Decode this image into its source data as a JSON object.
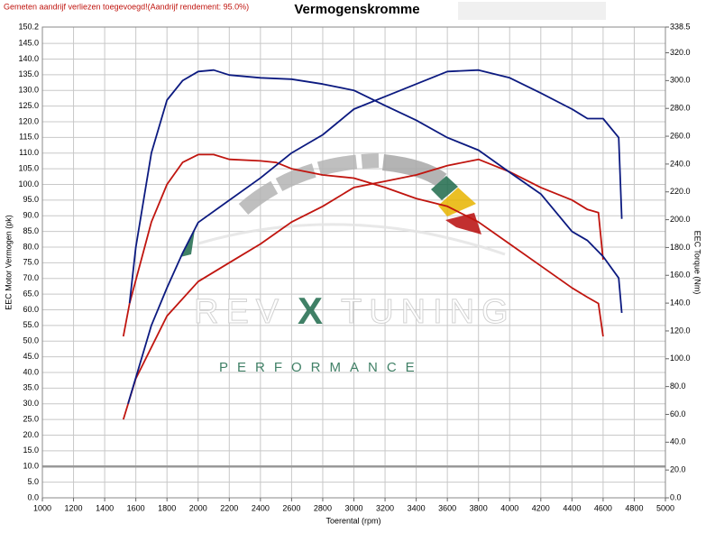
{
  "note": "Gemeten aandrijf verliezen toegevoegd!(Aandrijf rendement: 95.0%)",
  "watermark": {
    "brand_left": "REV",
    "brand_mid": "X",
    "brand_right": "TUNING",
    "tagline": "PERFORMANCE"
  },
  "chart_data": {
    "type": "line",
    "title": "Vermogenskromme",
    "x_label": "Toerental (rpm)",
    "y_label": "EEC Motor Vermogen (pk)",
    "y2_label": "EEC Torque (Nm)",
    "xlim": [
      1000,
      5000
    ],
    "xticks": [
      1000,
      1200,
      1400,
      1600,
      1800,
      2000,
      2200,
      2400,
      2600,
      2800,
      3000,
      3200,
      3400,
      3600,
      3800,
      4000,
      4200,
      4400,
      4600,
      4800,
      5000
    ],
    "ylim": [
      0,
      150.2
    ],
    "yticks": [
      {
        "value": 0,
        "label": "0.0"
      },
      {
        "value": 5,
        "label": "5.0"
      },
      {
        "value": 10,
        "label": "10.0"
      },
      {
        "value": 15,
        "label": "15.0"
      },
      {
        "value": 20,
        "label": "20.0"
      },
      {
        "value": 25,
        "label": "25.0"
      },
      {
        "value": 30,
        "label": "30.0"
      },
      {
        "value": 35,
        "label": "35.0"
      },
      {
        "value": 40,
        "label": "40.0"
      },
      {
        "value": 45,
        "label": "45.0"
      },
      {
        "value": 50,
        "label": "50.0"
      },
      {
        "value": 55,
        "label": "55.0"
      },
      {
        "value": 60,
        "label": "60.0"
      },
      {
        "value": 65,
        "label": "65.0"
      },
      {
        "value": 70,
        "label": "70.0"
      },
      {
        "value": 75,
        "label": "75.0"
      },
      {
        "value": 80,
        "label": "80.0"
      },
      {
        "value": 85,
        "label": "85.0"
      },
      {
        "value": 90,
        "label": "90.0"
      },
      {
        "value": 95,
        "label": "95.0"
      },
      {
        "value": 100,
        "label": "100.0"
      },
      {
        "value": 105,
        "label": "105.0"
      },
      {
        "value": 110,
        "label": "110.0"
      },
      {
        "value": 115,
        "label": "115.0"
      },
      {
        "value": 120,
        "label": "120.0"
      },
      {
        "value": 125,
        "label": "125.0"
      },
      {
        "value": 130,
        "label": "130.0"
      },
      {
        "value": 135,
        "label": "135.0"
      },
      {
        "value": 140,
        "label": "140.0"
      },
      {
        "value": 145,
        "label": "145.0"
      },
      150.2
    ],
    "y2lim": [
      0,
      338.5
    ],
    "y2ticks": [
      {
        "value": 0,
        "label": "0.0"
      },
      {
        "value": 20,
        "label": "20.0"
      },
      {
        "value": 40,
        "label": "40.0"
      },
      {
        "value": 60,
        "label": "60.0"
      },
      {
        "value": 80,
        "label": "80.0"
      },
      {
        "value": 100,
        "label": "100.0"
      },
      {
        "value": 120,
        "label": "120.0"
      },
      {
        "value": 140,
        "label": "140.0"
      },
      {
        "value": 160,
        "label": "160.0"
      },
      {
        "value": 180,
        "label": "180.0"
      },
      {
        "value": 200,
        "label": "200.0"
      },
      {
        "value": 220,
        "label": "220.0"
      },
      {
        "value": 240,
        "label": "240.0"
      },
      {
        "value": 260,
        "label": "260.0"
      },
      {
        "value": 280,
        "label": "280.0"
      },
      {
        "value": 300,
        "label": "300.0"
      },
      {
        "value": 320,
        "label": "320.0"
      },
      338.5
    ],
    "grid": true,
    "reference_line": 10,
    "series": [
      {
        "color": "#c0150f",
        "axis": "y",
        "x": [
          1520,
          1560,
          1700,
          1800,
          1900,
          2000,
          2100,
          2200,
          2400,
          2500,
          2600,
          2800,
          3000,
          3200,
          3400,
          3600,
          3800,
          4000,
          4200,
          4400,
          4500,
          4570,
          4600
        ],
        "values": [
          51.5,
          62,
          88,
          100,
          107,
          109.5,
          109.5,
          108,
          107.5,
          107,
          105,
          103,
          102,
          99,
          95.5,
          93,
          88,
          81,
          74,
          67,
          64,
          62,
          51.5
        ]
      },
      {
        "color": "#c0150f",
        "axis": "y",
        "x": [
          1520,
          1600,
          1800,
          2000,
          2200,
          2400,
          2600,
          2800,
          3000,
          3200,
          3400,
          3600,
          3800,
          4000,
          4200,
          4400,
          4500,
          4570,
          4600
        ],
        "values": [
          25,
          38,
          58,
          69,
          75,
          81,
          88,
          93,
          99,
          101,
          103,
          106,
          108,
          104,
          99,
          95,
          92,
          91,
          76
        ]
      },
      {
        "color": "#0c1a80",
        "axis": "y2",
        "x": [
          1560,
          1600,
          1700,
          1800,
          1900,
          2000,
          2100,
          2200,
          2400,
          2600,
          2800,
          3000,
          3200,
          3400,
          3600,
          3800,
          4000,
          4200,
          4400,
          4500,
          4600,
          4700,
          4720
        ],
        "values": [
          140,
          180,
          248,
          286,
          300,
          306.5,
          307.6,
          304,
          302,
          301,
          297.5,
          293,
          282,
          271.5,
          259,
          250,
          234,
          218.5,
          191.5,
          185,
          173.5,
          158,
          133
        ]
      },
      {
        "color": "#0c1a80",
        "axis": "y2",
        "x": [
          1550,
          1700,
          1800,
          1900,
          2000,
          2200,
          2400,
          2600,
          2800,
          3000,
          3200,
          3400,
          3600,
          3800,
          4000,
          4200,
          4400,
          4500,
          4600,
          4700,
          4720
        ],
        "values": [
          67.6,
          124,
          151,
          176,
          198,
          214,
          230,
          248,
          261,
          279.5,
          288.5,
          297.5,
          306.5,
          307.6,
          302,
          291,
          279.5,
          272.7,
          272.7,
          259,
          200.6
        ]
      }
    ]
  }
}
